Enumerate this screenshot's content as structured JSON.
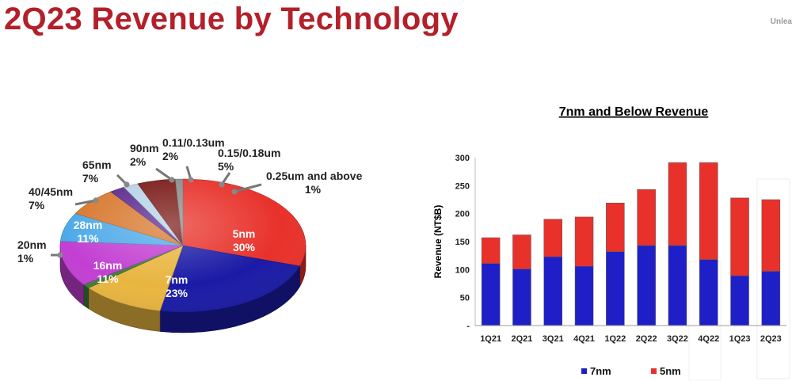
{
  "page": {
    "title": "2Q23 Revenue by Technology",
    "corner_tag": "Unlea",
    "title_color": "#B3202A"
  },
  "chart_data": [
    {
      "type": "pie",
      "slices": [
        {
          "label": "5nm",
          "value": 30,
          "display": "30%",
          "color": "#E8312A"
        },
        {
          "label": "7nm",
          "value": 23,
          "display": "23%",
          "color": "#1A1AA6"
        },
        {
          "label": "16nm",
          "value": 11,
          "display": "11%",
          "color": "#E8B53F"
        },
        {
          "label": "20nm",
          "value": 1,
          "display": "1%",
          "color": "#3E7D3A"
        },
        {
          "label": "28nm",
          "value": 11,
          "display": "11%",
          "color": "#C23FD2"
        },
        {
          "label": "40/45nm",
          "value": 7,
          "display": "7%",
          "color": "#4DA9E8"
        },
        {
          "label": "65nm",
          "value": 7,
          "display": "7%",
          "color": "#D8782F"
        },
        {
          "label": "90nm",
          "value": 2,
          "display": "2%",
          "color": "#5B2A8E"
        },
        {
          "label": "0.11/0.13um",
          "value": 2,
          "display": "2%",
          "color": "#B7D3E6"
        },
        {
          "label": "0.15/0.18um",
          "value": 5,
          "display": "5%",
          "color": "#7A1A18"
        },
        {
          "label": "0.25um and above",
          "value": 1,
          "display": "1%",
          "color": "#8C8C8C"
        }
      ]
    },
    {
      "type": "bar",
      "stacked": true,
      "title": "7nm and Below Revenue",
      "ylabel": "Revenue (NT$B)",
      "ylim": [
        0,
        300
      ],
      "yticks": [
        "-",
        "50",
        "100",
        "150",
        "200",
        "250",
        "300"
      ],
      "categories": [
        "1Q21",
        "2Q21",
        "3Q21",
        "4Q21",
        "1Q22",
        "2Q22",
        "3Q22",
        "4Q22",
        "1Q23",
        "2Q23"
      ],
      "series": [
        {
          "name": "7nm",
          "color": "#1F1FC8",
          "values": [
            111,
            101,
            123,
            106,
            132,
            143,
            143,
            118,
            89,
            97
          ]
        },
        {
          "name": "5nm",
          "color": "#E8312A",
          "values": [
            46,
            61,
            67,
            88,
            87,
            100,
            148,
            173,
            139,
            128
          ]
        }
      ],
      "legend_position": "bottom",
      "grid": false
    }
  ]
}
